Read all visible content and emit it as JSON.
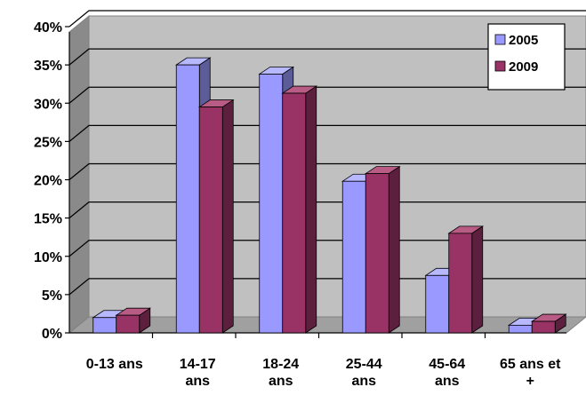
{
  "chart_data": {
    "type": "bar",
    "title": "",
    "xlabel": "",
    "ylabel": "",
    "categories": [
      [
        "0-13 ans"
      ],
      [
        "14-17",
        "ans"
      ],
      [
        "18-24",
        "ans"
      ],
      [
        "25-44",
        "ans"
      ],
      [
        "45-64",
        "ans"
      ],
      [
        "65 ans et",
        "+"
      ]
    ],
    "series": [
      {
        "name": "2005",
        "values": [
          2,
          35,
          33.8,
          19.8,
          7.5,
          1
        ]
      },
      {
        "name": "2009",
        "values": [
          2.3,
          29.5,
          31.3,
          20.8,
          13,
          1.5
        ]
      }
    ],
    "ylim": [
      0,
      40
    ],
    "yticks": [
      0,
      5,
      10,
      15,
      20,
      25,
      30,
      35,
      40
    ],
    "ytick_format": "%",
    "grid": true,
    "legend_position": "top-right",
    "colors": {
      "series_front": [
        "#9999ff",
        "#993366"
      ],
      "series_side": [
        "#5c5c99",
        "#5c1f3d"
      ],
      "series_top": [
        "#b8b8ff",
        "#b85c85"
      ],
      "wall": "#c0c0c0",
      "side_wall": "#8a8a8a",
      "floor": "#a0a0a0",
      "gridline": "#000000"
    }
  }
}
